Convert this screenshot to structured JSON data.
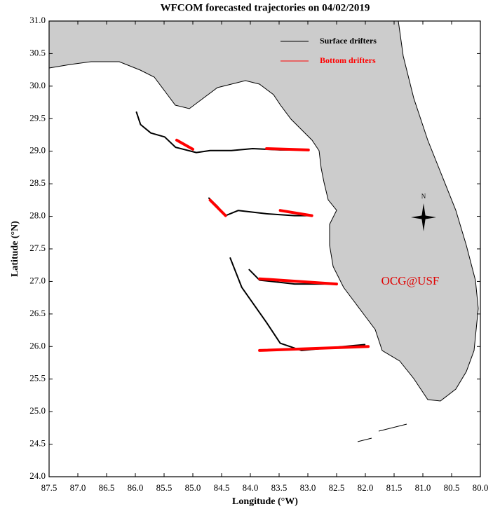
{
  "chart_data": {
    "type": "map-trajectories",
    "title": "WFCOM forecasted trajectories on 04/02/2019",
    "x_label": "Longitude (°W)",
    "y_label": "Latitude (°N)",
    "annotations": [
      "OCG@USF",
      "N"
    ],
    "xlim": [
      87.5,
      80.0
    ],
    "ylim": [
      24.0,
      31.0
    ],
    "xticks": [
      87.5,
      {
        "value": 87,
        "label": "87.0"
      },
      86.5,
      {
        "value": 86,
        "label": "86.0"
      },
      85.5,
      {
        "value": 85,
        "label": "85.0"
      },
      84.5,
      {
        "value": 84,
        "label": "84.0"
      },
      83.5,
      {
        "value": 83,
        "label": "83.0"
      },
      82.5,
      {
        "value": 82,
        "label": "82.0"
      },
      81.5,
      {
        "value": 81,
        "label": "81.0"
      },
      80.5,
      {
        "value": 80,
        "label": "80.0"
      }
    ],
    "yticks": [
      {
        "value": 24,
        "label": "24.0"
      },
      24.5,
      {
        "value": 25,
        "label": "25.0"
      },
      25.5,
      {
        "value": 26,
        "label": "26.0"
      },
      26.5,
      {
        "value": 27,
        "label": "27.0"
      },
      27.5,
      {
        "value": 28,
        "label": "28.0"
      },
      28.5,
      {
        "value": 29,
        "label": "29.0"
      },
      29.5,
      {
        "value": 30,
        "label": "30.0"
      },
      30.5,
      {
        "value": 31,
        "label": "31.0"
      }
    ],
    "series": [
      {
        "name": "Surface drifters",
        "color": "#000000",
        "tracks": [
          {
            "x": [
              85.98,
              85.91,
              85.73,
              85.49,
              85.3,
              84.94,
              84.7,
              84.33,
              83.96,
              83.48,
              82.99
            ],
            "y": [
              29.6,
              29.41,
              29.28,
              29.22,
              29.06,
              28.98,
              29.01,
              29.01,
              29.04,
              29.02,
              29.02
            ]
          },
          {
            "x": [
              84.72,
              84.57,
              84.43,
              84.21,
              83.72,
              83.23,
              82.93
            ],
            "y": [
              28.28,
              28.15,
              28.01,
              28.09,
              28.04,
              28.01,
              28.01
            ]
          },
          {
            "x": [
              84.02,
              83.84,
              83.23,
              82.5
            ],
            "y": [
              27.18,
              27.02,
              26.96,
              26.96
            ]
          },
          {
            "x": [
              84.35,
              84.15,
              83.72,
              83.48,
              83.11,
              82.01
            ],
            "y": [
              27.36,
              26.91,
              26.37,
              26.05,
              25.94,
              26.03
            ]
          }
        ]
      },
      {
        "name": "Bottom drifters",
        "color": "#ff0000",
        "tracks": [
          {
            "x": [
              85.28,
              85.0
            ],
            "y": [
              29.17,
              29.03
            ]
          },
          {
            "x": [
              83.72,
              82.99
            ],
            "y": [
              29.04,
              29.02
            ]
          },
          {
            "x": [
              84.7,
              84.43
            ],
            "y": [
              28.25,
              28.01
            ]
          },
          {
            "x": [
              83.48,
              82.93
            ],
            "y": [
              28.09,
              28.01
            ]
          },
          {
            "x": [
              83.84,
              82.5
            ],
            "y": [
              27.04,
              26.96
            ]
          },
          {
            "x": [
              83.84,
              81.95
            ],
            "y": [
              25.94,
              26.0
            ]
          }
        ]
      }
    ]
  }
}
